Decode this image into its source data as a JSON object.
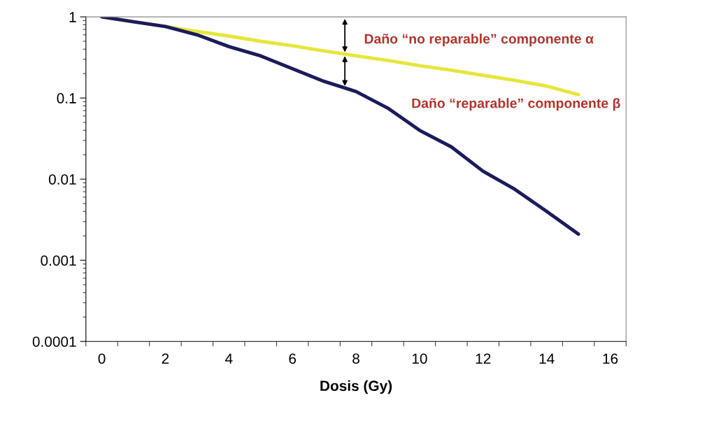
{
  "chart_data": {
    "type": "line",
    "categories": [
      "0",
      null,
      "2",
      null,
      "4",
      null,
      "6",
      null,
      "8",
      null,
      "10",
      null,
      "12",
      null,
      "14",
      null,
      "16"
    ],
    "series": [
      {
        "color": "#e6e63c",
        "values": [
          1,
          0.87,
          0.76,
          0.66,
          0.58,
          0.5,
          0.44,
          0.38,
          0.33,
          0.29,
          0.25,
          0.22,
          0.19,
          0.165,
          0.14,
          0.11,
          null
        ]
      },
      {
        "color": "#1b1b5c",
        "values": [
          1,
          0.87,
          0.76,
          0.6,
          0.43,
          0.33,
          0.23,
          0.16,
          0.12,
          0.075,
          0.04,
          0.025,
          0.0125,
          0.0075,
          0.004,
          0.0021,
          null
        ]
      }
    ],
    "xlabel": "Dosis (Gy)",
    "log": "y",
    "ylim": [
      0.0001,
      1
    ],
    "yticks": [
      0.0001,
      0.001,
      0.01,
      0.1,
      1
    ],
    "annotations": [
      "Daño “no reparable” componente α",
      "Daño “reparable” componente β"
    ],
    "grid": false,
    "legend": false,
    "marker": "none",
    "line_style": "solid"
  }
}
